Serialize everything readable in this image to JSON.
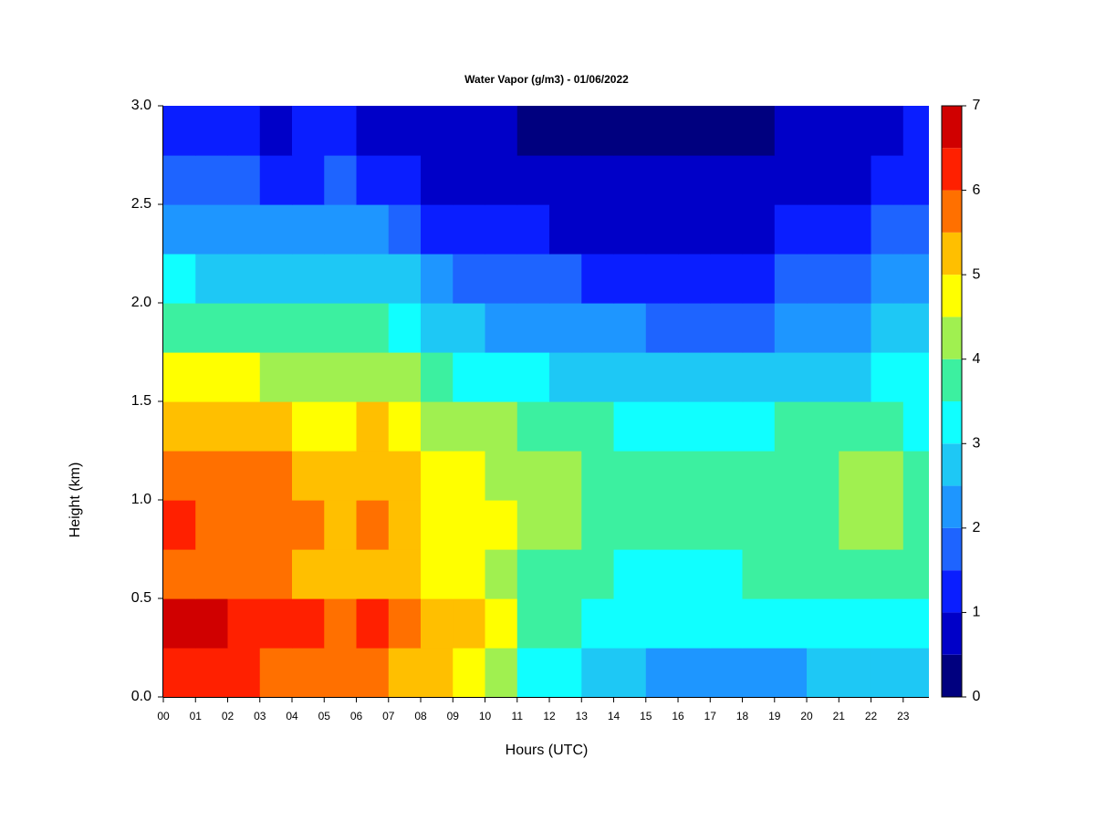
{
  "chart_data": {
    "type": "heatmap",
    "title": "Water Vapor (g/m3) - 01/06/2022",
    "xlabel": "Hours (UTC)",
    "ylabel": "Height (km)",
    "x": [
      0,
      1,
      2,
      3,
      4,
      5,
      6,
      7,
      8,
      9,
      10,
      11,
      12,
      13,
      14,
      15,
      16,
      17,
      18,
      19,
      20,
      21,
      22,
      23
    ],
    "y": [
      0,
      0.25,
      0.5,
      0.75,
      1,
      1.25,
      1.5,
      1.75,
      2,
      2.25,
      2.5,
      2.75
    ],
    "z": [
      [
        6.3,
        6.2,
        6,
        5.8,
        5.6,
        5.5,
        5.6,
        5.4,
        5,
        4.6,
        4.2,
        3.3,
        3,
        2.9,
        2.8,
        2.4,
        2.3,
        2.3,
        2.3,
        2.4,
        2.5,
        2.6,
        2.8,
        2.8
      ],
      [
        6.6,
        6.5,
        6.3,
        6.1,
        6,
        5.9,
        6.1,
        5.7,
        5.4,
        5.1,
        4.8,
        3.8,
        3.5,
        3.3,
        3.2,
        3.1,
        3,
        3,
        3,
        3.1,
        3.2,
        3.3,
        3.4,
        3.3
      ],
      [
        5.9,
        5.8,
        5.6,
        5.5,
        5.3,
        5.2,
        5.4,
        5,
        4.8,
        4.6,
        4.3,
        3.8,
        3.6,
        3.5,
        3.4,
        3.3,
        3.3,
        3.4,
        3.5,
        3.5,
        3.6,
        3.7,
        3.7,
        3.5
      ],
      [
        6,
        5.9,
        5.8,
        5.7,
        5.5,
        5.4,
        5.6,
        5.2,
        4.9,
        4.7,
        4.5,
        4.2,
        4,
        3.9,
        3.8,
        3.7,
        3.6,
        3.7,
        3.7,
        3.8,
        3.9,
        4,
        4,
        3.8
      ],
      [
        5.8,
        5.7,
        5.6,
        5.5,
        5.3,
        5.2,
        5.4,
        5,
        4.7,
        4.5,
        4.3,
        4.1,
        4,
        3.9,
        3.8,
        3.6,
        3.5,
        3.6,
        3.7,
        3.8,
        3.9,
        4,
        4,
        3.8
      ],
      [
        5.4,
        5.3,
        5.2,
        5.1,
        4.9,
        4.8,
        5,
        4.7,
        4.4,
        4.2,
        4,
        3.7,
        3.6,
        3.5,
        3.4,
        3.3,
        3.2,
        3.3,
        3.4,
        3.5,
        3.6,
        3.6,
        3.6,
        3.4
      ],
      [
        4.6,
        4.5,
        4.5,
        4.4,
        4.3,
        4.2,
        4.3,
        4,
        3.6,
        3.4,
        3.2,
        3,
        2.9,
        2.8,
        2.7,
        2.6,
        2.5,
        2.5,
        2.6,
        2.7,
        2.8,
        2.9,
        3,
        3
      ],
      [
        3.9,
        3.8,
        3.8,
        3.7,
        3.6,
        3.6,
        3.6,
        3.3,
        2.9,
        2.6,
        2.4,
        2.3,
        2.2,
        2.1,
        2,
        1.9,
        1.8,
        1.8,
        1.9,
        2,
        2.1,
        2.3,
        2.5,
        2.6
      ],
      [
        3,
        2.9,
        2.9,
        2.8,
        2.8,
        2.8,
        2.8,
        2.5,
        2.1,
        1.9,
        1.7,
        1.6,
        1.5,
        1.4,
        1.3,
        1.3,
        1.3,
        1.3,
        1.4,
        1.5,
        1.7,
        1.9,
        2.1,
        2.3
      ],
      [
        2.3,
        2.2,
        2.2,
        2.1,
        2.1,
        2.1,
        2.1,
        1.8,
        1.4,
        1.2,
        1.1,
        1,
        0.9,
        0.9,
        0.8,
        0.8,
        0.8,
        0.8,
        0.9,
        1,
        1.2,
        1.4,
        1.6,
        1.9
      ],
      [
        1.6,
        1.5,
        1.5,
        1.4,
        1.4,
        1.5,
        1.4,
        1.2,
        0.9,
        0.8,
        0.7,
        0.7,
        0.6,
        0.5,
        0.5,
        0.5,
        0.5,
        0.6,
        0.6,
        0.7,
        0.8,
        0.9,
        1.1,
        1.4
      ],
      [
        1.1,
        1,
        1,
        0.9,
        1,
        1.1,
        0.9,
        0.8,
        0.6,
        0.5,
        0.5,
        0.4,
        0.4,
        0.3,
        0.3,
        0.3,
        0.3,
        0.3,
        0.4,
        0.5,
        0.6,
        0.7,
        0.9,
        1.1
      ]
    ],
    "xlim": [
      0,
      23.8
    ],
    "ylim": [
      0,
      3
    ],
    "xticks": [
      {
        "value": 0,
        "label": "00"
      },
      {
        "value": 1,
        "label": "01"
      },
      {
        "value": 2,
        "label": "02"
      },
      {
        "value": 3,
        "label": "03"
      },
      {
        "value": 4,
        "label": "04"
      },
      {
        "value": 5,
        "label": "05"
      },
      {
        "value": 6,
        "label": "06"
      },
      {
        "value": 7,
        "label": "07"
      },
      {
        "value": 8,
        "label": "08"
      },
      {
        "value": 9,
        "label": "09"
      },
      10,
      11,
      12,
      13,
      14,
      15,
      16,
      17,
      18,
      19,
      20,
      21,
      22,
      23
    ],
    "yticks": [
      {
        "value": 0,
        "label": "0.0"
      },
      {
        "value": 0.5,
        "label": "0.5"
      },
      {
        "value": 1,
        "label": "1.0"
      },
      {
        "value": 1.5,
        "label": "1.5"
      },
      {
        "value": 2,
        "label": "2.0"
      },
      {
        "value": 2.5,
        "label": "2.5"
      },
      {
        "value": 3,
        "label": "3.0"
      }
    ],
    "levels": [
      0,
      0.5,
      1,
      1.5,
      2,
      2.5,
      3,
      3.5,
      4,
      4.5,
      5,
      5.5,
      6,
      6.5,
      7
    ],
    "colors": [
      "#00007f",
      "#0000c8",
      "#0a1eff",
      "#1e64ff",
      "#1e96ff",
      "#1ec8f5",
      "#10ffff",
      "#3cf0a0",
      "#a0f050",
      "#ffff00",
      "#ffbf00",
      "#ff7000",
      "#ff2000",
      "#d00000",
      "#800000"
    ],
    "colorbar_ticks": [
      0,
      1,
      2,
      3,
      4,
      5,
      6,
      7
    ]
  }
}
